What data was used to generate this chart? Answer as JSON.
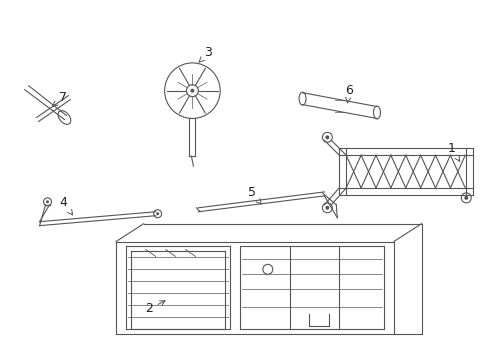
{
  "bg_color": "#ffffff",
  "line_color": "#555555",
  "label_color": "#222222",
  "lw": 0.8
}
